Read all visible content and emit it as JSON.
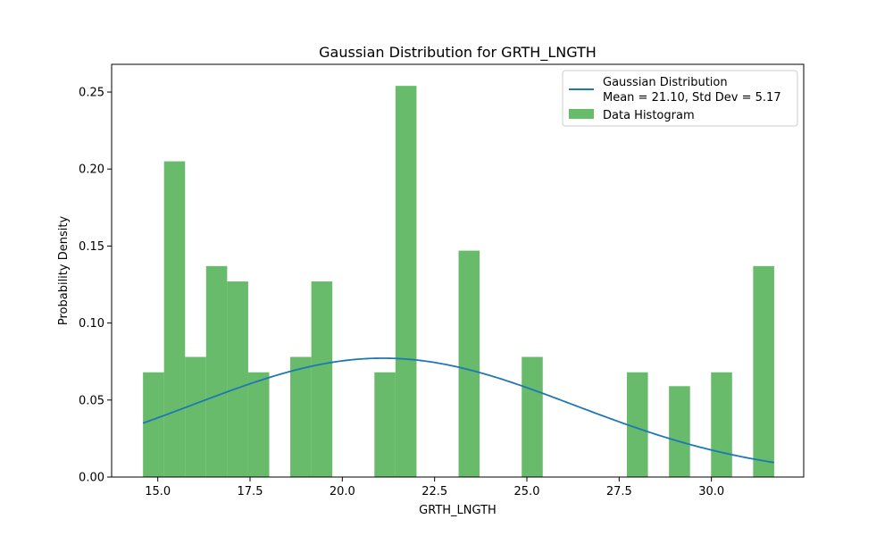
{
  "chart_data": {
    "type": "bar",
    "title": "Gaussian Distribution for GRTH_LNGTH",
    "xlabel": "GRTH_LNGTH",
    "ylabel": "Probability Density",
    "xlim": [
      13.75,
      32.5
    ],
    "ylim": [
      0,
      0.268
    ],
    "x_ticks": [
      15.0,
      17.5,
      20.0,
      22.5,
      25.0,
      27.5,
      30.0
    ],
    "x_tick_labels": [
      "15.0",
      "17.5",
      "20.0",
      "22.5",
      "25.0",
      "27.5",
      "30.0"
    ],
    "y_ticks": [
      0,
      0.05,
      0.1,
      0.15,
      0.2,
      0.25
    ],
    "y_tick_labels": [
      "0.00",
      "0.05",
      "0.10",
      "0.15",
      "0.20",
      "0.25"
    ],
    "grid": false,
    "legend_position": "top-right",
    "histogram": {
      "name": "Data Histogram",
      "color": "#4caf50",
      "opacity": 0.85,
      "bin_edges": [
        14.6,
        15.17,
        15.74,
        16.31,
        16.88,
        17.45,
        18.02,
        18.59,
        19.16,
        19.73,
        20.3,
        20.87,
        21.44,
        22.01,
        22.58,
        23.15,
        23.72,
        24.29,
        24.86,
        25.43,
        26.0,
        26.57,
        27.14,
        27.71,
        28.28,
        28.85,
        29.42,
        29.99,
        30.56,
        31.13,
        31.7
      ],
      "densities": [
        0.068,
        0.205,
        0.078,
        0.137,
        0.127,
        0.068,
        0.0,
        0.078,
        0.127,
        0.0,
        0.0,
        0.068,
        0.254,
        0.0,
        0.0,
        0.147,
        0.0,
        0.0,
        0.078,
        0.0,
        0.0,
        0.0,
        0.0,
        0.068,
        0.0,
        0.059,
        0.0,
        0.068,
        0.0,
        0.137
      ]
    },
    "gaussian": {
      "name": "Gaussian Distribution\nMean = 21.10, Std Dev = 5.17",
      "color": "#1f77b4",
      "mean": 21.1,
      "std": 5.17,
      "x_range": [
        14.6,
        31.7
      ]
    }
  }
}
